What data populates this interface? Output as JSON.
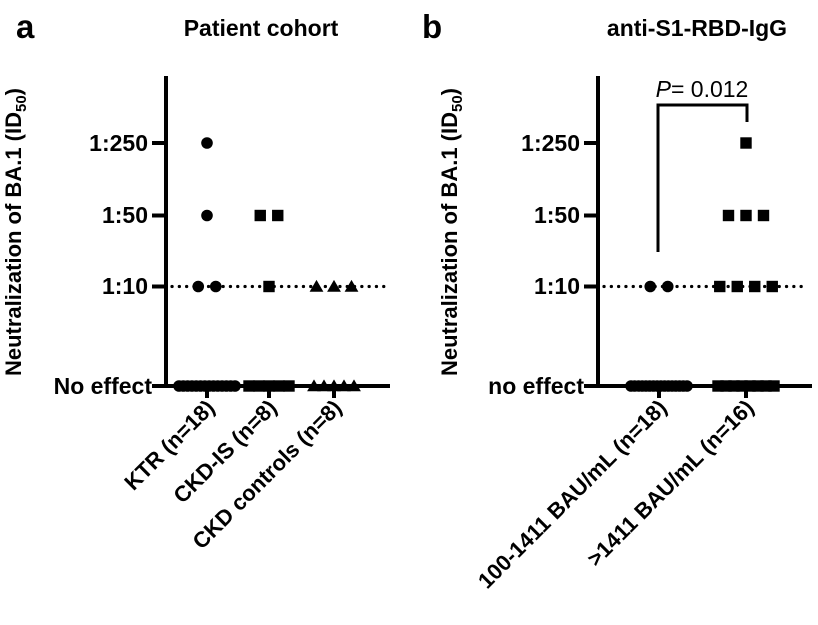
{
  "figure": {
    "background": "#ffffff",
    "ink_color": "#000000"
  },
  "chart_data": [
    {
      "type": "scatter",
      "panel_label": "a",
      "title": "Patient cohort",
      "ylabel": {
        "pre": "Neutralization of BA.1 (ID",
        "sub": "50",
        "post": ")"
      },
      "ytick_labels": [
        "1:250",
        "1:50",
        "1:10",
        "No effect"
      ],
      "y_levels": [
        "1:250",
        "1:50",
        "1:10",
        "no effect"
      ],
      "dotted_reference_line_at": "1:10",
      "legend_position": "none",
      "grid": "off",
      "groups": [
        {
          "name": "KTR (n=18)",
          "marker": "circle",
          "counts": {
            "1:250": 1,
            "1:50": 1,
            "1:10": 2,
            "no_effect": 14
          }
        },
        {
          "name": "CKD-IS (n=8)",
          "marker": "square",
          "counts": {
            "1:250": 0,
            "1:50": 2,
            "1:10": 1,
            "no_effect": 5
          }
        },
        {
          "name": "CKD controls (n=8)",
          "marker": "triangle",
          "counts": {
            "1:250": 0,
            "1:50": 0,
            "1:10": 3,
            "no_effect": 5
          }
        }
      ]
    },
    {
      "type": "scatter",
      "panel_label": "b",
      "title": "anti-S1-RBD-IgG",
      "ylabel": {
        "pre": "Neutralization of BA.1 (ID",
        "sub": "50",
        "post": ")"
      },
      "ytick_labels": [
        "1:250",
        "1:50",
        "1:10",
        "no effect"
      ],
      "y_levels": [
        "1:250",
        "1:50",
        "1:10",
        "no effect"
      ],
      "dotted_reference_line_at": "1:10",
      "legend_position": "none",
      "grid": "off",
      "significance": {
        "p_lead": "P",
        "p_rest": "= 0.012",
        "compares": [
          "100-1411 BAU/mL (n=18)",
          ">1411 BAU/mL (n=16)"
        ]
      },
      "groups": [
        {
          "name": "100-1411 BAU/mL (n=18)",
          "marker": "circle",
          "counts": {
            "1:250": 0,
            "1:50": 0,
            "1:10": 2,
            "no_effect": 16
          }
        },
        {
          "name": ">1411 BAU/mL (n=16)",
          "marker": "square",
          "counts": {
            "1:250": 1,
            "1:50": 3,
            "1:10": 4,
            "no_effect": 8
          }
        }
      ]
    }
  ]
}
